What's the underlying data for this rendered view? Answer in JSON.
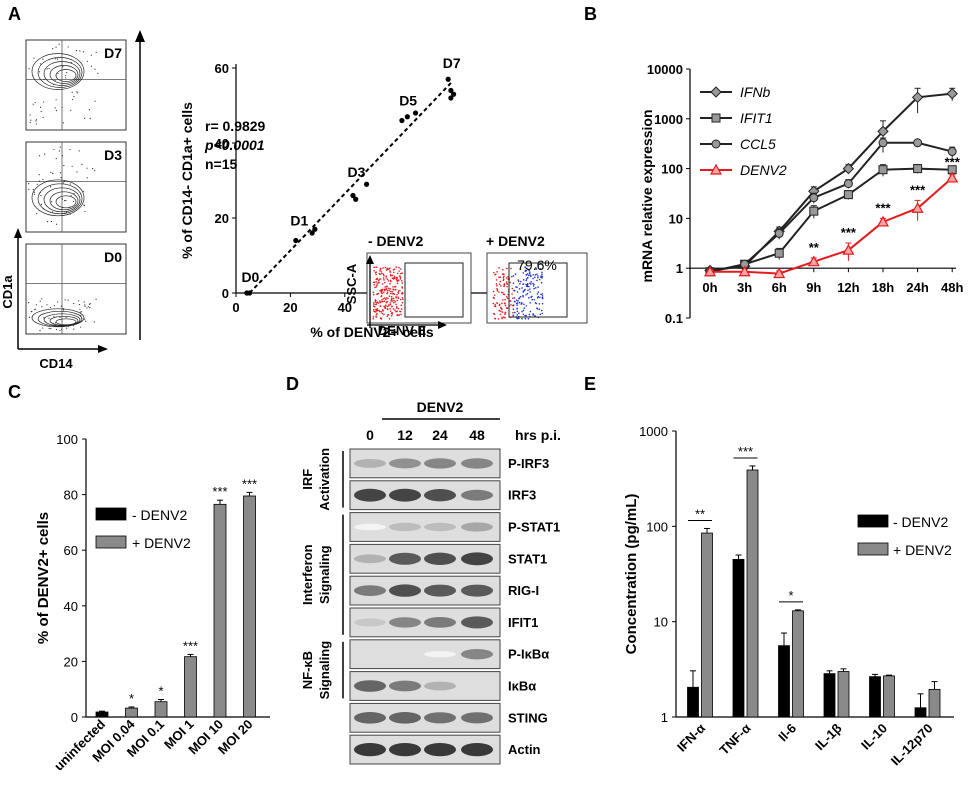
{
  "panels": {
    "A": {
      "letter": "A"
    },
    "B": {
      "letter": "B"
    },
    "C": {
      "letter": "C"
    },
    "D": {
      "letter": "D"
    },
    "E": {
      "letter": "E"
    }
  },
  "flow": {
    "xaxis_label": "CD14",
    "yaxis_label": "CD1a",
    "plots": [
      "D7",
      "D3",
      "D0"
    ]
  },
  "inset": {
    "neg_label": "- DENV2",
    "pos_label": "+ DENV2",
    "pos_percent": "79.6%",
    "yaxis": "SSC-A",
    "xaxis": "DENV E"
  },
  "stats": {
    "r": "r= 0.9829",
    "p": "p<0.0001",
    "n": "n=15"
  },
  "chart_data": [
    {
      "type": "scatter",
      "panel": "A",
      "xlabel": "% of DENV2+ cells",
      "ylabel": "% of CD14- CD1a+ cells",
      "xlim": [
        0,
        100
      ],
      "ylim": [
        0,
        60
      ],
      "xticks": [
        "0",
        "20",
        "40",
        "60",
        "80",
        "100"
      ],
      "yticks": [
        "0",
        "20",
        "40",
        "60"
      ],
      "points": [
        [
          4,
          0
        ],
        [
          5,
          0
        ],
        [
          22,
          14
        ],
        [
          28,
          16
        ],
        [
          29,
          17
        ],
        [
          43,
          26
        ],
        [
          44,
          25
        ],
        [
          48,
          29
        ],
        [
          61,
          46
        ],
        [
          63,
          47
        ],
        [
          66,
          48
        ],
        [
          78,
          57
        ],
        [
          79,
          54
        ],
        [
          79,
          52
        ],
        [
          80,
          53
        ]
      ],
      "point_labels": [
        {
          "text": "D0",
          "x": 2,
          "y": 3
        },
        {
          "text": "D1",
          "x": 20,
          "y": 18
        },
        {
          "text": "D3",
          "x": 41,
          "y": 31
        },
        {
          "text": "D5",
          "x": 60,
          "y": 50
        },
        {
          "text": "D7",
          "x": 76,
          "y": 60
        }
      ],
      "fit": [
        [
          5,
          0
        ],
        [
          79,
          56
        ]
      ]
    },
    {
      "type": "line",
      "panel": "B",
      "ylabel": "mRNA relative expression",
      "yscale": "log",
      "ylim": [
        0.1,
        10000
      ],
      "yticks": [
        "0.1",
        "1",
        "10",
        "100",
        "1000",
        "10000"
      ],
      "categories": [
        "0h",
        "3h",
        "6h",
        "9h",
        "12h",
        "18h",
        "24h",
        "48h"
      ],
      "series": [
        {
          "name": "IFNb",
          "color": "#222222",
          "marker": "diamond",
          "values": [
            0.9,
            1.1,
            5.5,
            35,
            100,
            560,
            2700,
            3200
          ],
          "err": [
            0.1,
            0.2,
            1.2,
            8,
            20,
            350,
            1400,
            900
          ]
        },
        {
          "name": "IFIT1",
          "color": "#222222",
          "marker": "square",
          "values": [
            0.85,
            1.2,
            2,
            14,
            30,
            95,
            100,
            95
          ],
          "err": [
            0.1,
            0.2,
            0.5,
            4,
            6,
            25,
            20,
            15
          ]
        },
        {
          "name": "CCL5",
          "color": "#222222",
          "marker": "circle",
          "values": [
            0.85,
            1.2,
            5,
            26,
            50,
            330,
            330,
            220
          ],
          "err": [
            0.1,
            0.2,
            1.2,
            6,
            10,
            80,
            40,
            50
          ]
        },
        {
          "name": "DENV2",
          "color": "#e41a1c",
          "marker": "triangle",
          "values": [
            0.85,
            0.85,
            0.78,
            1.35,
            2.3,
            8.5,
            16,
            65
          ],
          "err": [
            0.1,
            0.1,
            0.1,
            0.25,
            0.9,
            1.5,
            7,
            10
          ]
        }
      ],
      "annotations": [
        {
          "text": "**",
          "category": "9h"
        },
        {
          "text": "***",
          "category": "12h"
        },
        {
          "text": "***",
          "category": "18h"
        },
        {
          "text": "***",
          "category": "24h"
        },
        {
          "text": "***",
          "category": "48h"
        }
      ]
    },
    {
      "type": "bar",
      "panel": "C",
      "ylabel": "% of DENV2+ cells",
      "ylim": [
        0,
        100
      ],
      "yticks": [
        "0",
        "20",
        "40",
        "60",
        "80",
        "100"
      ],
      "categories": [
        "uninfected",
        "MOI 0.04",
        "MOI 0.1",
        "MOI 1",
        "MOI 10",
        "MOI 20"
      ],
      "values": [
        1.8,
        3.2,
        5.5,
        21.7,
        76.5,
        79.5
      ],
      "err": [
        0.3,
        0.4,
        0.8,
        0.8,
        1.5,
        1.3
      ],
      "bar_colors": [
        "#000000",
        "#8a8a8a",
        "#8a8a8a",
        "#8a8a8a",
        "#8a8a8a",
        "#8a8a8a"
      ],
      "annotations": [
        "",
        "*",
        "*",
        "***",
        "***",
        "***"
      ],
      "legend": [
        {
          "name": "- DENV2",
          "color": "#000000"
        },
        {
          "name": "+ DENV2",
          "color": "#8a8a8a"
        }
      ]
    },
    {
      "type": "bar",
      "panel": "E",
      "ylabel": "Concentration (pg/mL)",
      "yscale": "log",
      "ylim": [
        1,
        1000
      ],
      "yticks": [
        "1",
        "10",
        "100",
        "1000"
      ],
      "categories": [
        "IFN-α",
        "TNF-α",
        "Il-6",
        "IL-1β",
        "IL-10",
        "IL-12p70"
      ],
      "series": [
        {
          "name": "- DENV2",
          "color": "#000000",
          "values": [
            2.05,
            45,
            5.6,
            2.85,
            2.65,
            1.25
          ],
          "err": [
            1.0,
            5,
            2.0,
            0.2,
            0.15,
            0.5
          ]
        },
        {
          "name": "+ DENV2",
          "color": "#8a8a8a",
          "values": [
            85,
            390,
            13,
            3.0,
            2.7,
            1.95
          ],
          "err": [
            10,
            40,
            0.3,
            0.2,
            0.05,
            0.4
          ]
        }
      ],
      "annotations": [
        {
          "text": "**",
          "category": "IFN-α"
        },
        {
          "text": "***",
          "category": "TNF-α"
        },
        {
          "text": "*",
          "category": "Il-6"
        }
      ],
      "legend": [
        {
          "name": "- DENV2",
          "color": "#000000"
        },
        {
          "name": "+ DENV2",
          "color": "#8a8a8a"
        }
      ]
    }
  ],
  "blot": {
    "header": "DENV2",
    "timepoints": [
      "0",
      "12",
      "24",
      "48"
    ],
    "unit": "hrs p.i.",
    "groups": [
      {
        "name": "IRF Activation",
        "lines": [
          "IRF",
          "Activation"
        ]
      },
      {
        "name": "Interferon Signaling",
        "lines": [
          "Interferon",
          "Signaling"
        ]
      },
      {
        "name": "NF-κB Signaling",
        "lines": [
          "NF-κB",
          "Signaling"
        ]
      }
    ],
    "rows": [
      {
        "label": "P-IRF3",
        "intensity": [
          0.35,
          0.5,
          0.55,
          0.55
        ]
      },
      {
        "label": "IRF3",
        "intensity": [
          0.85,
          0.85,
          0.8,
          0.6
        ]
      },
      {
        "label": "P-STAT1",
        "intensity": [
          0.05,
          0.3,
          0.3,
          0.4
        ]
      },
      {
        "label": "STAT1",
        "intensity": [
          0.35,
          0.75,
          0.8,
          0.85
        ]
      },
      {
        "label": "RIG-I",
        "intensity": [
          0.6,
          0.8,
          0.75,
          0.75
        ]
      },
      {
        "label": "IFIT1",
        "intensity": [
          0.25,
          0.55,
          0.6,
          0.75
        ]
      },
      {
        "label": "P-IκBα",
        "intensity": [
          0.0,
          0.0,
          0.05,
          0.55
        ]
      },
      {
        "label": "IκBα",
        "intensity": [
          0.7,
          0.6,
          0.35,
          0.15
        ]
      },
      {
        "label": "STING",
        "intensity": [
          0.7,
          0.7,
          0.65,
          0.65
        ]
      },
      {
        "label": "Actin",
        "intensity": [
          0.9,
          0.9,
          0.9,
          0.9
        ]
      }
    ]
  }
}
